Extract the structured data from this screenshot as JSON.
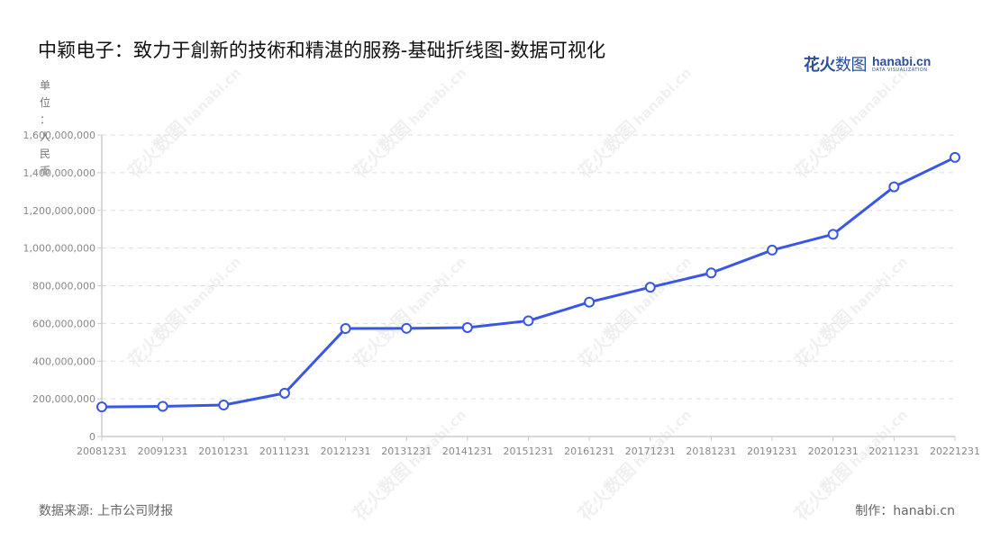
{
  "header": {
    "title": "中颖电子：致力于創新的技術和精湛的服務-基础折线图-数据可视化",
    "logo_cn_bold": "花火",
    "logo_cn_thin": "数图",
    "logo_en": "hanabi.cn",
    "logo_en_sub": "DATA VISUALIZATION"
  },
  "axis": {
    "unit_label": "单位：人民币"
  },
  "footer": {
    "source": "数据来源: 上市公司财报",
    "credit": "制作：hanabi.cn"
  },
  "watermark": {
    "cn": "花火数图",
    "en": "hanabi.cn"
  },
  "colors": {
    "line": "#3a56e4",
    "marker_fill": "#ffffff",
    "grid": "#dddddd",
    "axis": "#cccccc"
  },
  "chart_data": {
    "type": "line",
    "title": "中颖电子：致力于創新的技術和精湛的服務-基础折线图-数据可视化",
    "xlabel": "",
    "ylabel": "单位：人民币",
    "categories": [
      "20081231",
      "20091231",
      "20101231",
      "20111231",
      "20121231",
      "20131231",
      "20141231",
      "20151231",
      "20161231",
      "20171231",
      "20181231",
      "20191231",
      "20201231",
      "20211231",
      "20221231"
    ],
    "series": [
      {
        "name": "中颖电子",
        "values": [
          157000000,
          160000000,
          167000000,
          230000000,
          573000000,
          574000000,
          578000000,
          614000000,
          713000000,
          792000000,
          868000000,
          989000000,
          1073000000,
          1325000000,
          1481000000
        ]
      }
    ],
    "yticks": [
      0,
      200000000,
      400000000,
      600000000,
      800000000,
      1000000000,
      1200000000,
      1400000000,
      1600000000
    ],
    "ytick_labels": [
      "0",
      "200,000,000",
      "400,000,000",
      "600,000,000",
      "800,000,000",
      "1,000,000,000",
      "1,200,000,000",
      "1,400,000,000",
      "1,600,000,000"
    ],
    "ylim": [
      0,
      1600000000
    ],
    "grid": true,
    "legend": "none"
  }
}
